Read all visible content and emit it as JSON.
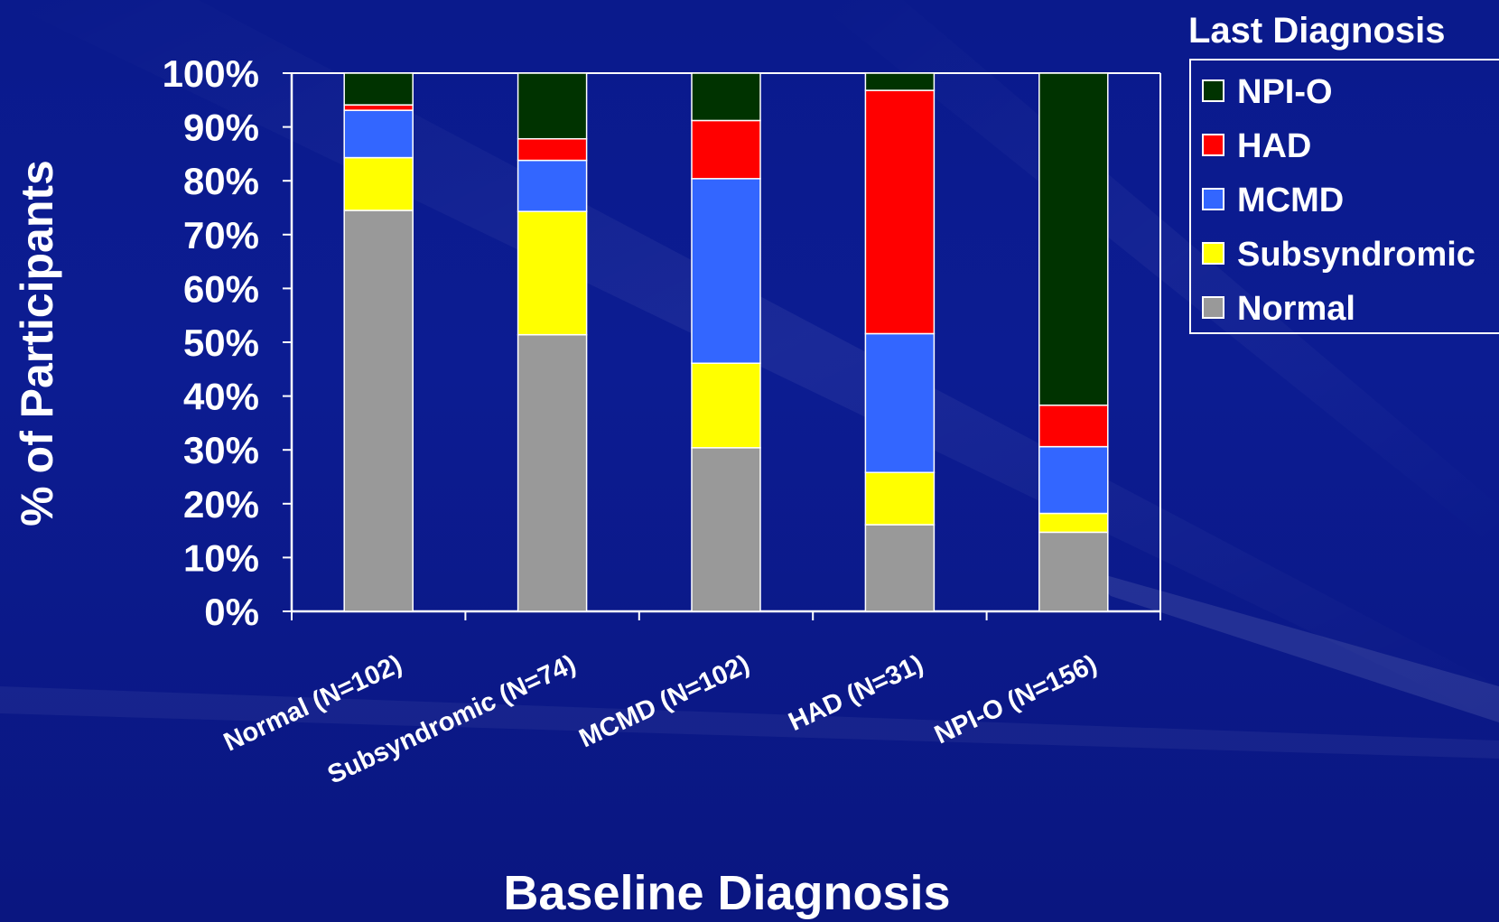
{
  "chart_data": {
    "type": "bar",
    "stacked": true,
    "percent": true,
    "categories": [
      "Normal (N=102)",
      "Subsyndromic (N=74)",
      "MCMD (N=102)",
      "HAD (N=31)",
      "NPI-O (N=156)"
    ],
    "series": [
      {
        "name": "Normal",
        "color": "#999999",
        "values": [
          74.5,
          51.4,
          30.4,
          16.1,
          14.7
        ]
      },
      {
        "name": "Subsyndromic",
        "color": "#ffff00",
        "values": [
          9.8,
          22.9,
          15.7,
          9.7,
          3.5
        ]
      },
      {
        "name": "MCMD",
        "color": "#3366ff",
        "values": [
          8.8,
          9.5,
          34.3,
          25.8,
          12.4
        ]
      },
      {
        "name": "HAD",
        "color": "#ff0000",
        "values": [
          1.0,
          4.0,
          10.8,
          45.2,
          7.7
        ]
      },
      {
        "name": "NPI-O",
        "color": "#003300",
        "values": [
          5.9,
          12.2,
          8.8,
          3.2,
          61.7
        ]
      }
    ],
    "title": "",
    "xlabel": "Baseline Diagnosis",
    "ylabel": "% of Participants",
    "ylim": [
      0,
      100
    ],
    "yticks": [
      "0%",
      "10%",
      "20%",
      "30%",
      "40%",
      "50%",
      "60%",
      "70%",
      "80%",
      "90%",
      "100%"
    ],
    "legend": {
      "title": "Last Diagnosis",
      "placement": "top-right",
      "order": [
        "NPI-O",
        "HAD",
        "MCMD",
        "Subsyndromic",
        "Normal"
      ]
    },
    "grid": false
  },
  "colors": {
    "background": "#0c1c92",
    "axis": "#ffffff",
    "text": "#ffffff"
  }
}
